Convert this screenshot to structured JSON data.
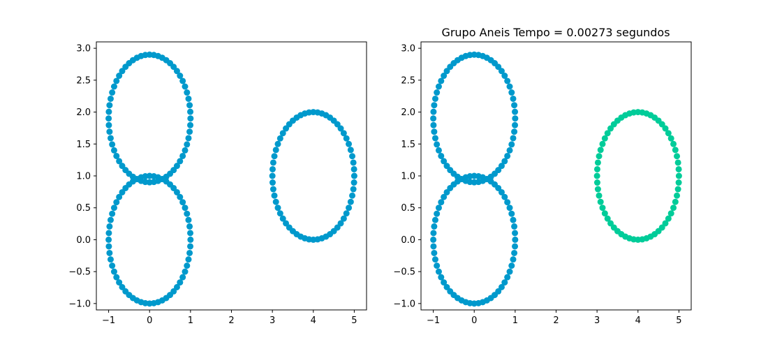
{
  "figure": {
    "background": "#ffffff"
  },
  "chart_data": [
    {
      "type": "scatter",
      "title": "",
      "xlabel": "",
      "ylabel": "",
      "xlim": [
        -1.3,
        5.3
      ],
      "ylim": [
        -1.1,
        3.1
      ],
      "xticks": [
        -1,
        0,
        1,
        2,
        3,
        4,
        5
      ],
      "xtick_labels": [
        "−1",
        "0",
        "1",
        "2",
        "3",
        "4",
        "5"
      ],
      "yticks": [
        -1.0,
        -0.5,
        0.0,
        0.5,
        1.0,
        1.5,
        2.0,
        2.5,
        3.0
      ],
      "ytick_labels": [
        "−1.0",
        "−0.5",
        "0.0",
        "0.5",
        "1.0",
        "1.5",
        "2.0",
        "2.5",
        "3.0"
      ],
      "grid": false,
      "marker": "circle",
      "series": [
        {
          "color": "#0099cc",
          "shape": "ring",
          "center": [
            0,
            0
          ],
          "radius": 1,
          "points": 60
        },
        {
          "color": "#0099cc",
          "shape": "ring",
          "center": [
            0,
            1.9
          ],
          "radius": 1,
          "points": 60
        },
        {
          "color": "#0099cc",
          "shape": "ring",
          "center": [
            4,
            1
          ],
          "radius": 1,
          "points": 60
        }
      ]
    },
    {
      "type": "scatter",
      "title": "Grupo Aneis Tempo = 0.00273 segundos",
      "xlabel": "",
      "ylabel": "",
      "xlim": [
        -1.3,
        5.3
      ],
      "ylim": [
        -1.1,
        3.1
      ],
      "xticks": [
        -1,
        0,
        1,
        2,
        3,
        4,
        5
      ],
      "xtick_labels": [
        "−1",
        "0",
        "1",
        "2",
        "3",
        "4",
        "5"
      ],
      "yticks": [
        -1.0,
        -0.5,
        0.0,
        0.5,
        1.0,
        1.5,
        2.0,
        2.5,
        3.0
      ],
      "ytick_labels": [
        "−1.0",
        "−0.5",
        "0.0",
        "0.5",
        "1.0",
        "1.5",
        "2.0",
        "2.5",
        "3.0"
      ],
      "grid": false,
      "marker": "circle",
      "series": [
        {
          "color": "#0099cc",
          "shape": "ring",
          "center": [
            0,
            0
          ],
          "radius": 1,
          "points": 60
        },
        {
          "color": "#0099cc",
          "shape": "ring",
          "center": [
            0,
            1.9
          ],
          "radius": 1,
          "points": 60
        },
        {
          "color": "#00cc99",
          "shape": "ring",
          "center": [
            4,
            1
          ],
          "radius": 1,
          "points": 60
        }
      ]
    }
  ]
}
